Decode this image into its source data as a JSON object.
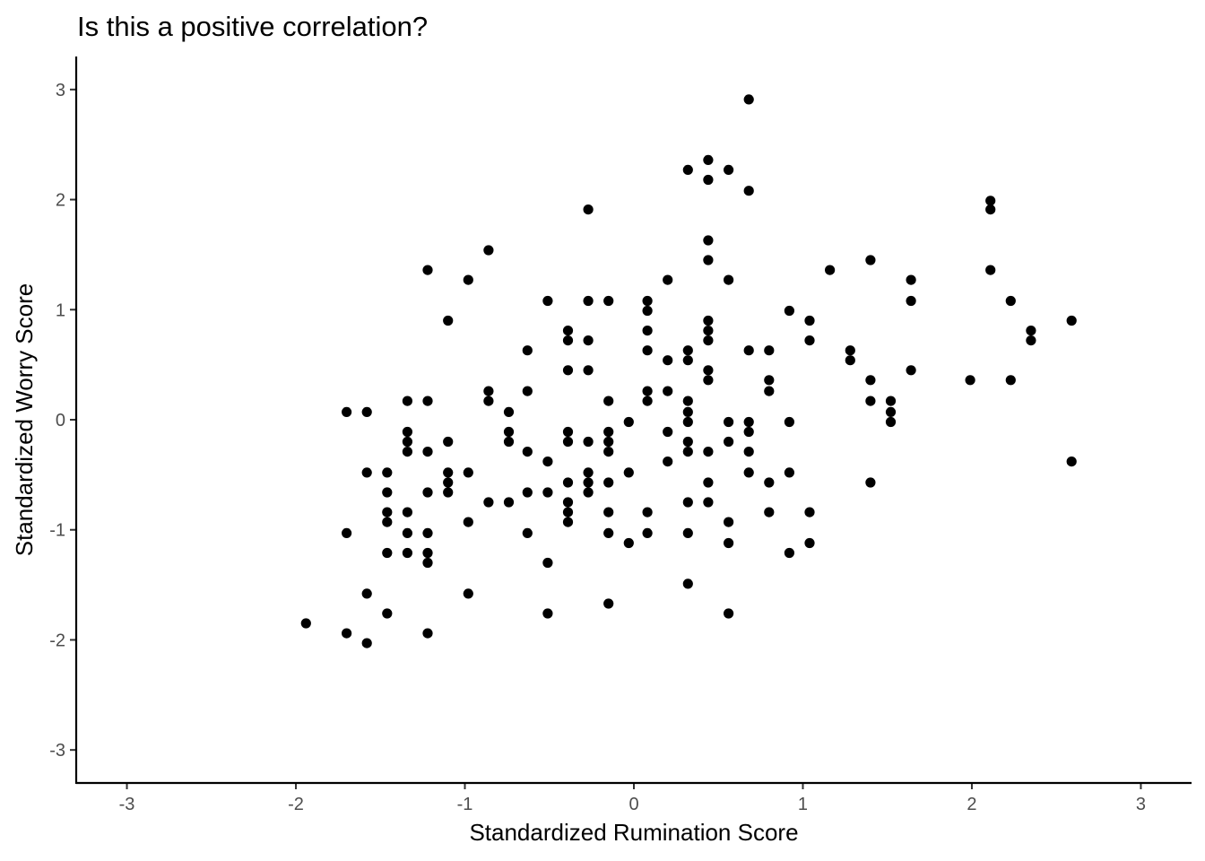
{
  "chart_data": {
    "type": "scatter",
    "title": "Is this a positive correlation?",
    "xlabel": "Standardized Rumination Score",
    "ylabel": "Standardized Worry Score",
    "xlim": [
      -3.3,
      3.3
    ],
    "ylim": [
      -3.3,
      3.3
    ],
    "x_ticks": [
      -3,
      -2,
      -1,
      0,
      1,
      2,
      3
    ],
    "y_ticks": [
      -3,
      -2,
      -1,
      0,
      1,
      2,
      3
    ],
    "x_tick_labels": [
      "-3",
      "-2",
      "-1",
      "0",
      "1",
      "2",
      "3"
    ],
    "y_tick_labels": [
      "-3",
      "-2",
      "-1",
      "0",
      "1",
      "2",
      "3"
    ],
    "grid": false,
    "point_color": "#000000",
    "points": [
      [
        0.68,
        2.91
      ],
      [
        0.44,
        2.36
      ],
      [
        0.32,
        2.27
      ],
      [
        0.56,
        2.27
      ],
      [
        0.44,
        2.18
      ],
      [
        0.68,
        2.08
      ],
      [
        2.11,
        1.99
      ],
      [
        2.11,
        1.91
      ],
      [
        -0.27,
        1.91
      ],
      [
        0.44,
        1.63
      ],
      [
        -0.86,
        1.54
      ],
      [
        0.44,
        1.45
      ],
      [
        1.4,
        1.45
      ],
      [
        -1.22,
        1.36
      ],
      [
        1.16,
        1.36
      ],
      [
        2.11,
        1.36
      ],
      [
        -0.98,
        1.27
      ],
      [
        0.2,
        1.27
      ],
      [
        0.56,
        1.27
      ],
      [
        1.64,
        1.27
      ],
      [
        -0.51,
        1.08
      ],
      [
        -0.27,
        1.08
      ],
      [
        -0.15,
        1.08
      ],
      [
        0.08,
        1.08
      ],
      [
        1.64,
        1.08
      ],
      [
        2.23,
        1.08
      ],
      [
        0.08,
        0.99
      ],
      [
        0.92,
        0.99
      ],
      [
        -1.1,
        0.9
      ],
      [
        0.44,
        0.9
      ],
      [
        1.04,
        0.9
      ],
      [
        2.59,
        0.9
      ],
      [
        -0.39,
        0.81
      ],
      [
        0.08,
        0.81
      ],
      [
        0.44,
        0.81
      ],
      [
        2.35,
        0.81
      ],
      [
        -0.39,
        0.72
      ],
      [
        -0.27,
        0.72
      ],
      [
        0.44,
        0.72
      ],
      [
        1.04,
        0.72
      ],
      [
        2.35,
        0.72
      ],
      [
        -0.63,
        0.63
      ],
      [
        0.08,
        0.63
      ],
      [
        0.32,
        0.63
      ],
      [
        0.68,
        0.63
      ],
      [
        0.8,
        0.63
      ],
      [
        1.28,
        0.63
      ],
      [
        0.2,
        0.54
      ],
      [
        0.32,
        0.54
      ],
      [
        1.28,
        0.54
      ],
      [
        -0.39,
        0.45
      ],
      [
        -0.27,
        0.45
      ],
      [
        0.44,
        0.45
      ],
      [
        1.64,
        0.45
      ],
      [
        0.44,
        0.36
      ],
      [
        0.8,
        0.36
      ],
      [
        1.4,
        0.36
      ],
      [
        1.99,
        0.36
      ],
      [
        2.23,
        0.36
      ],
      [
        -0.86,
        0.26
      ],
      [
        -0.63,
        0.26
      ],
      [
        0.08,
        0.26
      ],
      [
        0.2,
        0.26
      ],
      [
        0.8,
        0.26
      ],
      [
        -1.34,
        0.17
      ],
      [
        -1.22,
        0.17
      ],
      [
        -0.86,
        0.17
      ],
      [
        -0.15,
        0.17
      ],
      [
        0.08,
        0.17
      ],
      [
        0.32,
        0.17
      ],
      [
        1.4,
        0.17
      ],
      [
        1.52,
        0.17
      ],
      [
        -1.7,
        0.07
      ],
      [
        -1.58,
        0.07
      ],
      [
        -0.74,
        0.07
      ],
      [
        0.32,
        0.07
      ],
      [
        1.52,
        0.07
      ],
      [
        -0.03,
        -0.02
      ],
      [
        0.32,
        -0.02
      ],
      [
        0.56,
        -0.02
      ],
      [
        0.68,
        -0.02
      ],
      [
        0.92,
        -0.02
      ],
      [
        1.52,
        -0.02
      ],
      [
        -1.34,
        -0.11
      ],
      [
        -0.74,
        -0.11
      ],
      [
        -0.39,
        -0.11
      ],
      [
        -0.15,
        -0.11
      ],
      [
        0.2,
        -0.11
      ],
      [
        0.68,
        -0.11
      ],
      [
        -1.34,
        -0.2
      ],
      [
        -1.1,
        -0.2
      ],
      [
        -0.74,
        -0.2
      ],
      [
        -0.39,
        -0.2
      ],
      [
        -0.27,
        -0.2
      ],
      [
        -0.15,
        -0.2
      ],
      [
        0.32,
        -0.2
      ],
      [
        0.56,
        -0.2
      ],
      [
        -1.34,
        -0.29
      ],
      [
        -1.22,
        -0.29
      ],
      [
        -0.63,
        -0.29
      ],
      [
        -0.15,
        -0.29
      ],
      [
        0.32,
        -0.29
      ],
      [
        0.44,
        -0.29
      ],
      [
        0.68,
        -0.29
      ],
      [
        -0.51,
        -0.38
      ],
      [
        0.2,
        -0.38
      ],
      [
        2.59,
        -0.38
      ],
      [
        -1.58,
        -0.48
      ],
      [
        -1.46,
        -0.48
      ],
      [
        -1.1,
        -0.48
      ],
      [
        -0.98,
        -0.48
      ],
      [
        -0.27,
        -0.48
      ],
      [
        -0.03,
        -0.48
      ],
      [
        0.68,
        -0.48
      ],
      [
        0.92,
        -0.48
      ],
      [
        -1.1,
        -0.57
      ],
      [
        -0.39,
        -0.57
      ],
      [
        -0.27,
        -0.57
      ],
      [
        -0.15,
        -0.57
      ],
      [
        0.44,
        -0.57
      ],
      [
        0.8,
        -0.57
      ],
      [
        1.4,
        -0.57
      ],
      [
        -1.46,
        -0.66
      ],
      [
        -1.22,
        -0.66
      ],
      [
        -1.1,
        -0.66
      ],
      [
        -0.63,
        -0.66
      ],
      [
        -0.51,
        -0.66
      ],
      [
        -0.27,
        -0.66
      ],
      [
        -0.86,
        -0.75
      ],
      [
        -0.74,
        -0.75
      ],
      [
        -0.39,
        -0.75
      ],
      [
        0.32,
        -0.75
      ],
      [
        0.44,
        -0.75
      ],
      [
        -1.46,
        -0.84
      ],
      [
        -1.34,
        -0.84
      ],
      [
        -0.39,
        -0.84
      ],
      [
        -0.15,
        -0.84
      ],
      [
        0.08,
        -0.84
      ],
      [
        0.8,
        -0.84
      ],
      [
        1.04,
        -0.84
      ],
      [
        -1.46,
        -0.93
      ],
      [
        -0.98,
        -0.93
      ],
      [
        -0.39,
        -0.93
      ],
      [
        0.56,
        -0.93
      ],
      [
        -1.7,
        -1.03
      ],
      [
        -1.34,
        -1.03
      ],
      [
        -1.22,
        -1.03
      ],
      [
        -0.63,
        -1.03
      ],
      [
        -0.15,
        -1.03
      ],
      [
        0.08,
        -1.03
      ],
      [
        0.32,
        -1.03
      ],
      [
        -0.03,
        -1.12
      ],
      [
        0.56,
        -1.12
      ],
      [
        1.04,
        -1.12
      ],
      [
        -1.46,
        -1.21
      ],
      [
        -1.34,
        -1.21
      ],
      [
        -1.22,
        -1.21
      ],
      [
        0.92,
        -1.21
      ],
      [
        -1.22,
        -1.3
      ],
      [
        -0.51,
        -1.3
      ],
      [
        0.32,
        -1.49
      ],
      [
        -1.58,
        -1.58
      ],
      [
        -0.98,
        -1.58
      ],
      [
        -0.15,
        -1.67
      ],
      [
        -1.46,
        -1.76
      ],
      [
        -0.51,
        -1.76
      ],
      [
        0.56,
        -1.76
      ],
      [
        -1.94,
        -1.85
      ],
      [
        -1.7,
        -1.94
      ],
      [
        -1.22,
        -1.94
      ],
      [
        -1.58,
        -2.03
      ]
    ]
  }
}
